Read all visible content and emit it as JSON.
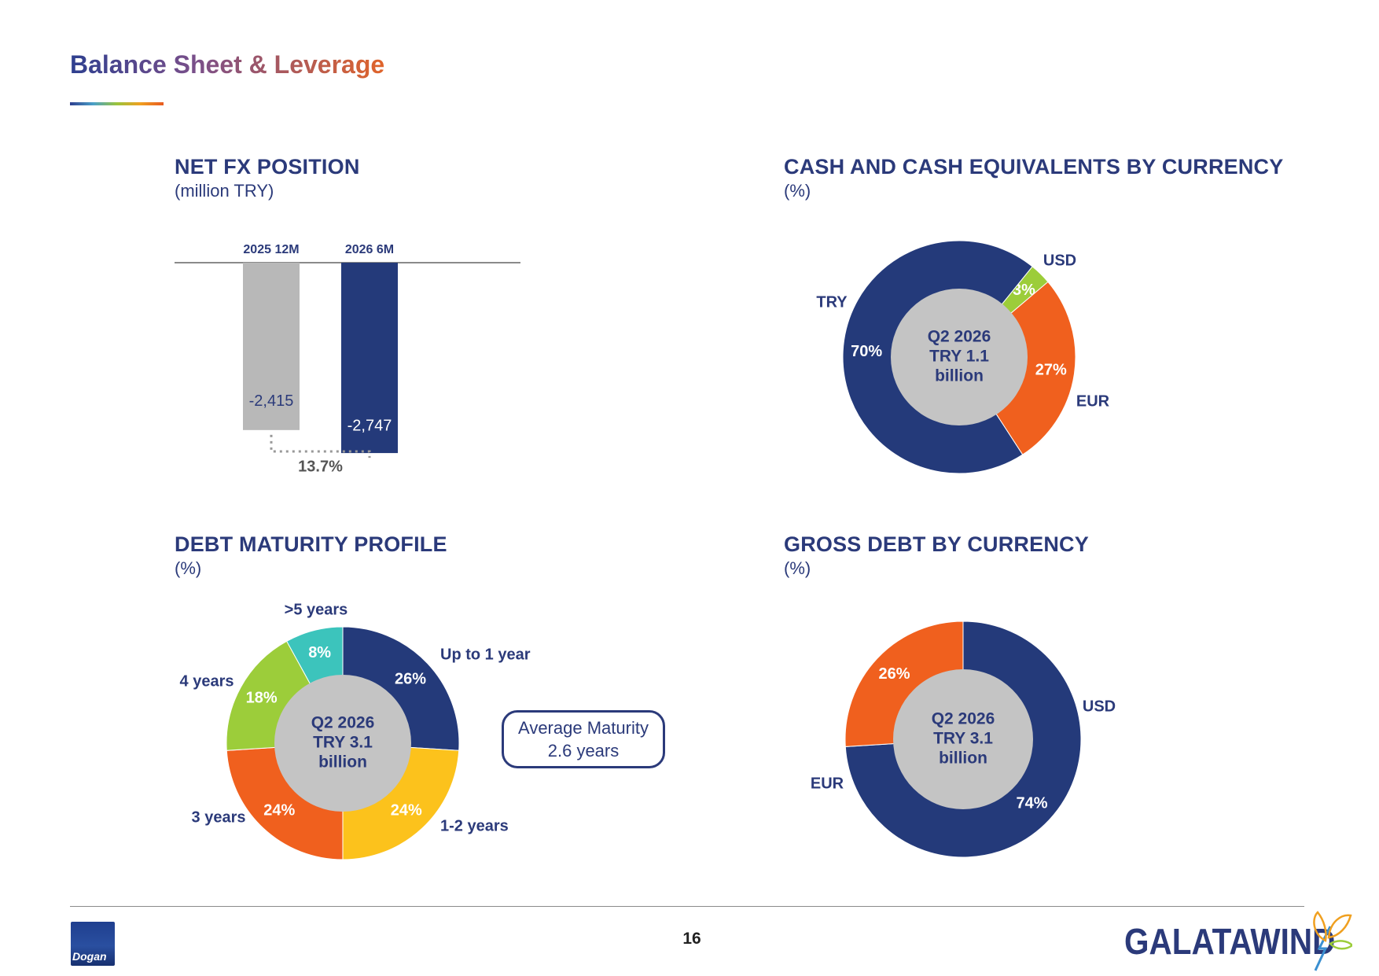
{
  "page": {
    "title": "Balance Sheet & Leverage",
    "page_number": "16",
    "footer_left_logo_text": "Dogan",
    "footer_right_logo_text": "GALATAWIND"
  },
  "colors": {
    "navy": "#243a7a",
    "grey_bar": "#b8b8b8",
    "orange": "#f0601e",
    "lime": "#9ccd3a",
    "teal": "#3cc4bc",
    "yellow": "#fcc21c",
    "center_grey": "#c4c4c4"
  },
  "net_fx": {
    "title": "NET FX POSITION",
    "subtitle": "(million TRY)",
    "change_label": "13.7%"
  },
  "cash": {
    "title": "CASH AND CASH EQUIVALENTS BY CURRENCY",
    "subtitle": "(%)",
    "center": [
      "Q2 2026",
      "TRY 1.1",
      "billion"
    ]
  },
  "maturity": {
    "title": "DEBT MATURITY PROFILE",
    "subtitle": "(%)",
    "center": [
      "Q2 2026",
      "TRY 3.1",
      "billion"
    ],
    "avg_line1": "Average Maturity",
    "avg_line2": "2.6 years"
  },
  "gross": {
    "title": "GROSS DEBT BY CURRENCY",
    "subtitle": "(%)",
    "center": [
      "Q2 2026",
      "TRY 3.1",
      "billion"
    ]
  },
  "chart_data": [
    {
      "type": "bar",
      "title": "NET FX POSITION",
      "subtitle": "(million TRY)",
      "categories": [
        "2025 12M",
        "2026 6M"
      ],
      "values": [
        -2415,
        -2747
      ],
      "value_labels": [
        "-2,415",
        "-2,747"
      ],
      "annotation": "13.7%",
      "colors": [
        "#b8b8b8",
        "#243a7a"
      ],
      "ylim": [
        -3200,
        0
      ]
    },
    {
      "type": "pie",
      "title": "CASH AND CASH EQUIVALENTS BY CURRENCY",
      "subtitle": "(%)",
      "labels": [
        "USD",
        "EUR",
        "TRY"
      ],
      "values": [
        3,
        27,
        70
      ],
      "value_labels": [
        "3%",
        "27%",
        "70%"
      ],
      "colors": [
        "#9ccd3a",
        "#f0601e",
        "#243a7a"
      ]
    },
    {
      "type": "pie",
      "title": "DEBT MATURITY PROFILE",
      "subtitle": "(%)",
      "labels": [
        "Up to 1 year",
        "1-2 years",
        "3 years",
        "4 years",
        ">5 years"
      ],
      "values": [
        26,
        24,
        24,
        18,
        8
      ],
      "value_labels": [
        "26%",
        "24%",
        "24%",
        "18%",
        "8%"
      ],
      "colors": [
        "#243a7a",
        "#fcc21c",
        "#f0601e",
        "#9ccd3a",
        "#3cc4bc"
      ]
    },
    {
      "type": "pie",
      "title": "GROSS DEBT BY CURRENCY",
      "subtitle": "(%)",
      "labels": [
        "USD",
        "EUR"
      ],
      "values": [
        74,
        26
      ],
      "value_labels": [
        "74%",
        "26%"
      ],
      "colors": [
        "#243a7a",
        "#f0601e"
      ]
    }
  ]
}
